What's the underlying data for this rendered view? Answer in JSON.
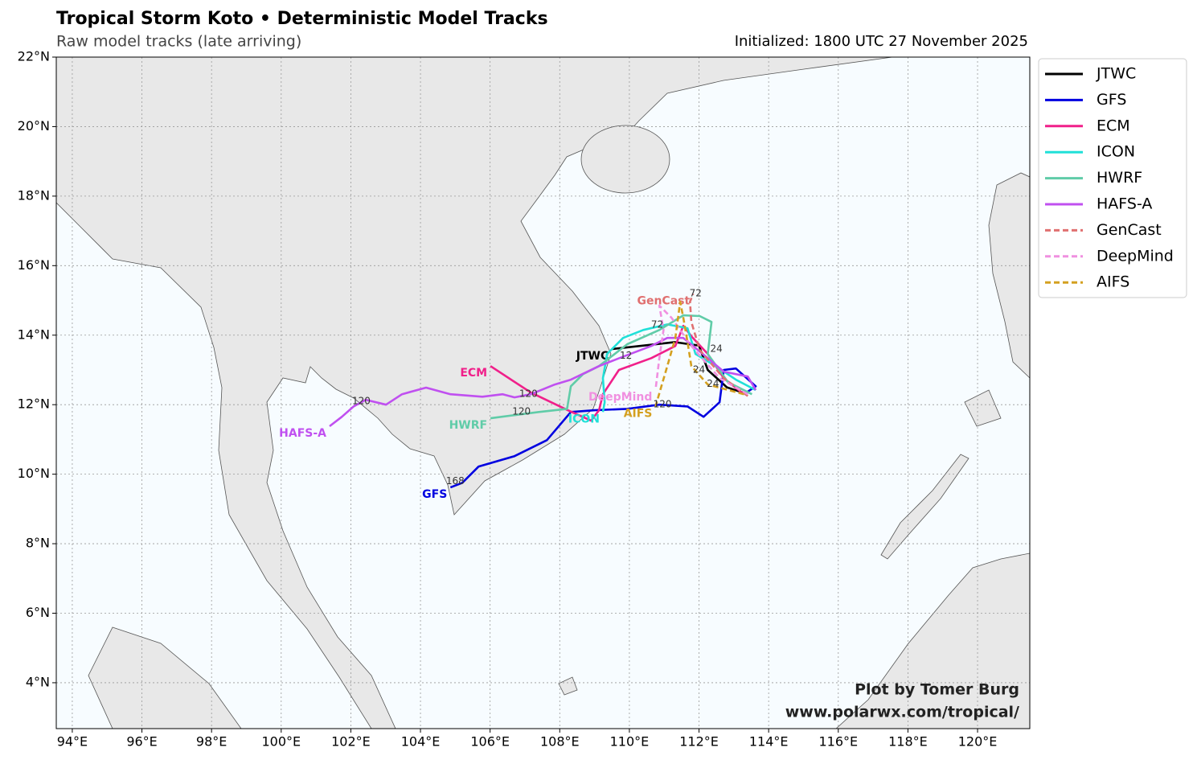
{
  "chart_data": {
    "type": "map",
    "title": "Tropical Storm Koto • Deterministic Model Tracks",
    "subtitle": "Raw model tracks (late arriving)",
    "initialized": "Initialized: 1800 UTC 27 November 2025",
    "credit": [
      "Plot by Tomer Burg",
      "www.polarwx.com/tropical/"
    ],
    "xlim": [
      93.54,
      121.5
    ],
    "ylim": [
      2.68,
      22
    ],
    "grid": true,
    "legend": "upper right outside",
    "xticks": [
      {
        "value": 94,
        "label": "94°E"
      },
      {
        "value": 96,
        "label": "96°E"
      },
      {
        "value": 98,
        "label": "98°E"
      },
      {
        "value": 100,
        "label": "100°E"
      },
      {
        "value": 102,
        "label": "102°E"
      },
      {
        "value": 104,
        "label": "104°E"
      },
      {
        "value": 106,
        "label": "106°E"
      },
      {
        "value": 108,
        "label": "108°E"
      },
      {
        "value": 110,
        "label": "110°E"
      },
      {
        "value": 112,
        "label": "112°E"
      },
      {
        "value": 114,
        "label": "114°E"
      },
      {
        "value": 116,
        "label": "116°E"
      },
      {
        "value": 118,
        "label": "118°E"
      },
      {
        "value": 120,
        "label": "120°E"
      }
    ],
    "yticks": [
      {
        "value": 4,
        "label": "4°N"
      },
      {
        "value": 6,
        "label": "6°N"
      },
      {
        "value": 8,
        "label": "8°N"
      },
      {
        "value": 10,
        "label": "10°N"
      },
      {
        "value": 12,
        "label": "12°N"
      },
      {
        "value": 14,
        "label": "14°N"
      },
      {
        "value": 16,
        "label": "16°N"
      },
      {
        "value": 18,
        "label": "18°N"
      },
      {
        "value": 20,
        "label": "20°N"
      },
      {
        "value": 22,
        "label": "22°N"
      }
    ],
    "series": [
      {
        "name": "JTWC",
        "color": "#000000",
        "dashed": false,
        "lon": [
          113.4,
          112.8,
          112.25,
          112.0,
          111.3,
          109.5
        ],
        "lat": [
          12.3,
          12.5,
          13.0,
          13.7,
          13.8,
          13.6
        ]
      },
      {
        "name": "GFS",
        "color": "#0000e0",
        "dashed": false,
        "lon": [
          113.29,
          113.63,
          113.06,
          112.71,
          112.59,
          112.13,
          111.67,
          110.86,
          109.94,
          109.01,
          108.32,
          107.63,
          106.7,
          105.67,
          105.2,
          104.86
        ],
        "lat": [
          12.3,
          12.53,
          13.04,
          13.0,
          12.07,
          11.65,
          11.95,
          12.0,
          11.88,
          11.84,
          11.79,
          10.98,
          10.52,
          10.22,
          9.75,
          9.62
        ]
      },
      {
        "name": "ECM",
        "color": "#f0208a",
        "dashed": false,
        "lon": [
          113.29,
          112.71,
          112.25,
          111.78,
          111.55,
          111.32,
          110.63,
          109.7,
          109.24,
          109.13,
          108.9,
          108.23,
          107.17,
          106.01
        ],
        "lat": [
          12.3,
          12.76,
          13.46,
          13.97,
          14.27,
          13.69,
          13.34,
          13.0,
          12.3,
          11.84,
          11.54,
          11.84,
          12.35,
          13.11
        ]
      },
      {
        "name": "ICON",
        "color": "#20e0d8",
        "dashed": false,
        "lon": [
          113.63,
          113.06,
          112.48,
          111.9,
          111.67,
          111.09,
          110.4,
          109.82,
          109.36,
          109.24,
          109.29,
          109.24
        ],
        "lat": [
          12.42,
          12.72,
          13.11,
          13.46,
          14.2,
          14.31,
          14.15,
          13.92,
          13.46,
          12.76,
          12.07,
          11.79
        ]
      },
      {
        "name": "HWRF",
        "color": "#60cca8",
        "dashed": false,
        "lon": [
          113.52,
          112.83,
          112.25,
          112.36,
          112.02,
          111.55,
          110.86,
          109.94,
          109.13,
          108.67,
          108.32,
          108.21,
          107.4,
          106.7,
          106.01
        ],
        "lat": [
          12.3,
          12.65,
          13.46,
          14.38,
          14.55,
          14.57,
          14.15,
          13.74,
          13.11,
          12.88,
          12.53,
          11.88,
          11.79,
          11.7,
          11.61
        ]
      },
      {
        "name": "HAFS-A",
        "color": "#c050f0",
        "dashed": false,
        "lon": [
          113.63,
          113.4,
          112.71,
          112.25,
          111.55,
          111.09,
          110.63,
          109.71,
          109.13,
          108.32,
          107.86,
          107.17,
          106.7,
          106.36,
          105.78,
          104.86,
          104.16,
          103.47,
          103.01,
          102.43,
          102.08,
          101.74,
          101.39
        ],
        "lat": [
          12.42,
          12.81,
          12.95,
          13.34,
          13.92,
          13.92,
          13.69,
          13.34,
          13.11,
          12.72,
          12.58,
          12.3,
          12.21,
          12.3,
          12.23,
          12.3,
          12.49,
          12.3,
          12.0,
          12.14,
          11.95,
          11.65,
          11.38
        ]
      },
      {
        "name": "GenCast",
        "color": "#e07070",
        "dashed": true,
        "lon": [
          113.4,
          112.71,
          112.02,
          111.78,
          111.74,
          111.83
        ],
        "lat": [
          12.25,
          12.76,
          13.57,
          14.38,
          14.96,
          15.19
        ]
      },
      {
        "name": "DeepMind",
        "color": "#f090e0",
        "dashed": true,
        "lon": [
          113.4,
          112.59,
          111.78,
          111.21,
          110.86,
          110.98,
          110.86,
          110.75
        ],
        "lat": [
          12.3,
          12.76,
          13.69,
          14.5,
          14.85,
          14.15,
          13.34,
          12.42
        ]
      },
      {
        "name": "AIFS",
        "color": "#d4a020",
        "dashed": true,
        "lon": [
          113.29,
          112.25,
          111.78,
          111.67,
          111.55,
          111.46,
          111.32,
          111.09,
          110.75
        ],
        "lat": [
          12.3,
          12.58,
          13.11,
          13.81,
          14.5,
          14.96,
          13.92,
          13.11,
          11.95
        ]
      }
    ],
    "hour_labels": [
      {
        "text": "120",
        "lon": 102.3,
        "lat": 12.1
      },
      {
        "text": "120",
        "lon": 107.1,
        "lat": 12.3
      },
      {
        "text": "120",
        "lon": 106.9,
        "lat": 11.8
      },
      {
        "text": "120",
        "lon": 110.95,
        "lat": 12.0
      },
      {
        "text": "168",
        "lon": 105.0,
        "lat": 9.8
      },
      {
        "text": "72",
        "lon": 111.9,
        "lat": 15.2
      },
      {
        "text": "72",
        "lon": 110.8,
        "lat": 14.3
      },
      {
        "text": "24",
        "lon": 112.5,
        "lat": 13.6
      },
      {
        "text": "24",
        "lon": 112.0,
        "lat": 13.0
      },
      {
        "text": "24",
        "lon": 112.4,
        "lat": 12.6
      },
      {
        "text": "12",
        "lon": 109.9,
        "lat": 13.4
      }
    ]
  }
}
